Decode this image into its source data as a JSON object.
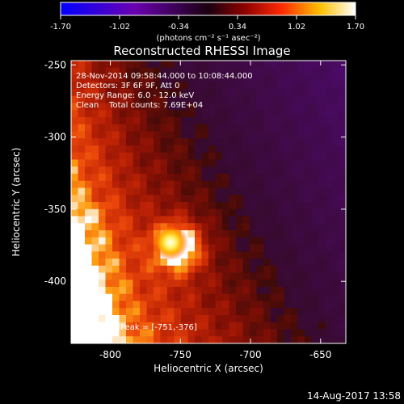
{
  "colorbar": {
    "tick_labels": [
      "-1.70",
      "-1.02",
      "-0.34",
      "0.34",
      "1.02",
      "1.70"
    ],
    "tick_values": [
      -1.7,
      -1.02,
      -0.34,
      0.34,
      1.02,
      1.7
    ],
    "range": [
      -1.7,
      1.7
    ],
    "unit_label": "(photons cm⁻² s⁻¹ asec⁻²)"
  },
  "title": "Reconstructed RHESSI Image",
  "info_lines": [
    "28-Nov-2014 09:58:44.000 to 10:08:44.000",
    "Detectors: 3F 6F 9F, Att 0",
    "Energy Range: 6.0 - 12.0 keV",
    "Clean    Total counts: 7.69E+04"
  ],
  "peak_label": "Position of Peak = [-751,-376]",
  "footer_timestamp": "14-Aug-2017 13:58",
  "chart_data": {
    "type": "heatmap",
    "title": "Reconstructed RHESSI Image",
    "xlabel": "Heliocentric X (arcsec)",
    "ylabel": "Heliocentric Y (arcsec)",
    "xlim": [
      -828,
      -632
    ],
    "ylim": [
      -443,
      -247
    ],
    "xticks": [
      -800,
      -750,
      -700,
      -650
    ],
    "yticks": [
      -250,
      -300,
      -350,
      -400
    ],
    "xtick_labels": [
      "-800",
      "-750",
      "-700",
      "-650"
    ],
    "ytick_labels": [
      "-250",
      "-300",
      "-350",
      "-400"
    ],
    "color_scale": "red-temperature (blue-purple negative, red-yellow-white positive)",
    "peak": {
      "x": -751,
      "y": -376
    },
    "grid": false,
    "legend": "none"
  }
}
